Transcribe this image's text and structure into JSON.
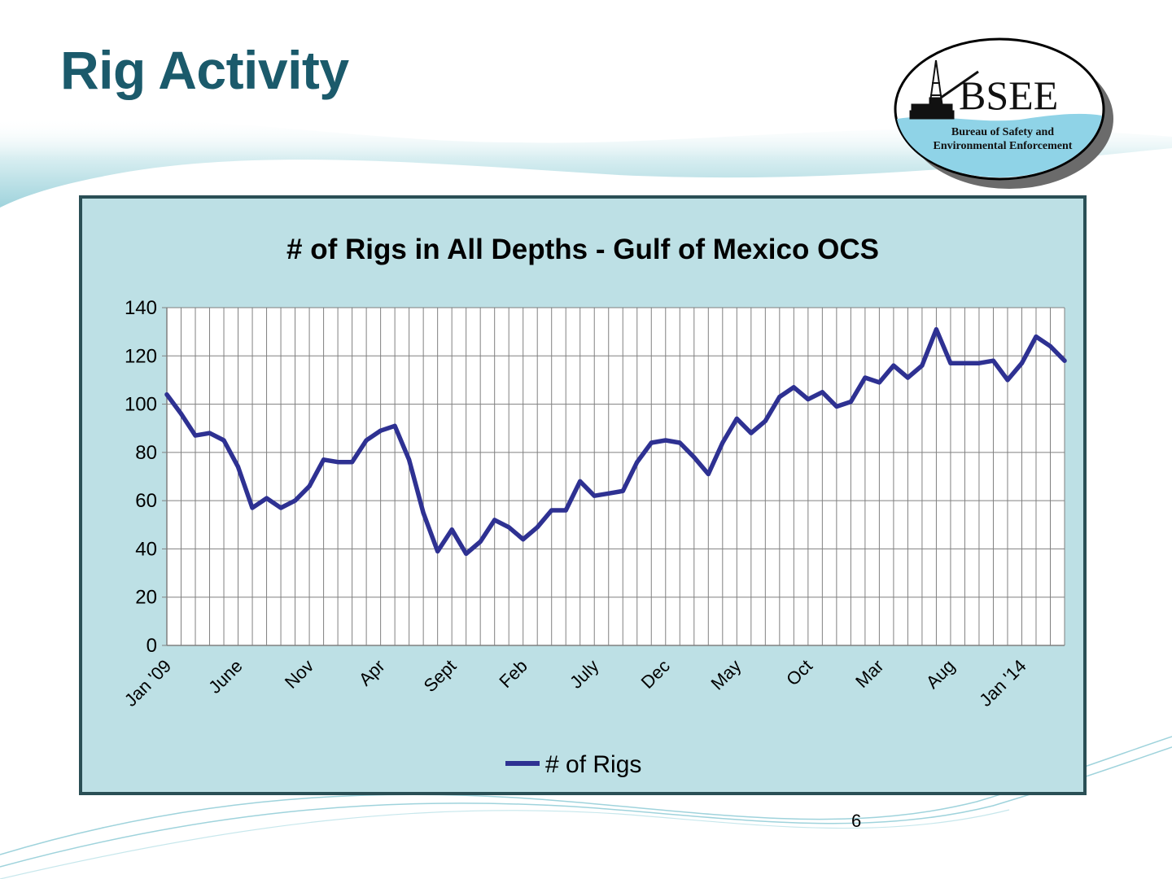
{
  "slide": {
    "title": "Rig Activity",
    "page_number": "6"
  },
  "logo": {
    "name": "BSEE",
    "subtitle_line1": "Bureau of Safety and",
    "subtitle_line2": "Environmental Enforcement"
  },
  "colors": {
    "title": "#1b5a6b",
    "series": "#2e3192",
    "chart_bg": "#bde0e5",
    "frame": "#2a4f55",
    "grid": "#808080"
  },
  "chart_data": {
    "type": "line",
    "title": "# of Rigs in All Depths - Gulf of Mexico OCS",
    "xlabel": "",
    "ylabel": "",
    "ylim": [
      0,
      140
    ],
    "yticks": [
      0,
      20,
      40,
      60,
      80,
      100,
      120,
      140
    ],
    "grid": true,
    "legend": "bottom",
    "x_tick_labels": [
      {
        "index": 0,
        "label": "Jan '09"
      },
      {
        "index": 5,
        "label": "June"
      },
      {
        "index": 10,
        "label": "Nov"
      },
      {
        "index": 15,
        "label": "Apr"
      },
      {
        "index": 20,
        "label": "Sept"
      },
      {
        "index": 25,
        "label": "Feb"
      },
      {
        "index": 30,
        "label": "July"
      },
      {
        "index": 35,
        "label": "Dec"
      },
      {
        "index": 40,
        "label": "May"
      },
      {
        "index": 45,
        "label": "Oct"
      },
      {
        "index": 50,
        "label": "Mar"
      },
      {
        "index": 55,
        "label": "Aug"
      },
      {
        "index": 60,
        "label": "Jan '14"
      }
    ],
    "series": [
      {
        "name": "# of Rigs",
        "values": [
          104,
          96,
          87,
          88,
          85,
          74,
          57,
          61,
          57,
          60,
          66,
          77,
          76,
          76,
          85,
          89,
          91,
          77,
          55,
          39,
          48,
          38,
          43,
          52,
          49,
          44,
          49,
          56,
          56,
          68,
          62,
          63,
          64,
          76,
          84,
          85,
          84,
          78,
          71,
          84,
          94,
          88,
          93,
          103,
          107,
          102,
          105,
          99,
          101,
          111,
          109,
          116,
          111,
          116,
          131,
          117,
          117,
          117,
          118,
          110,
          117,
          128,
          124,
          118
        ]
      }
    ]
  }
}
